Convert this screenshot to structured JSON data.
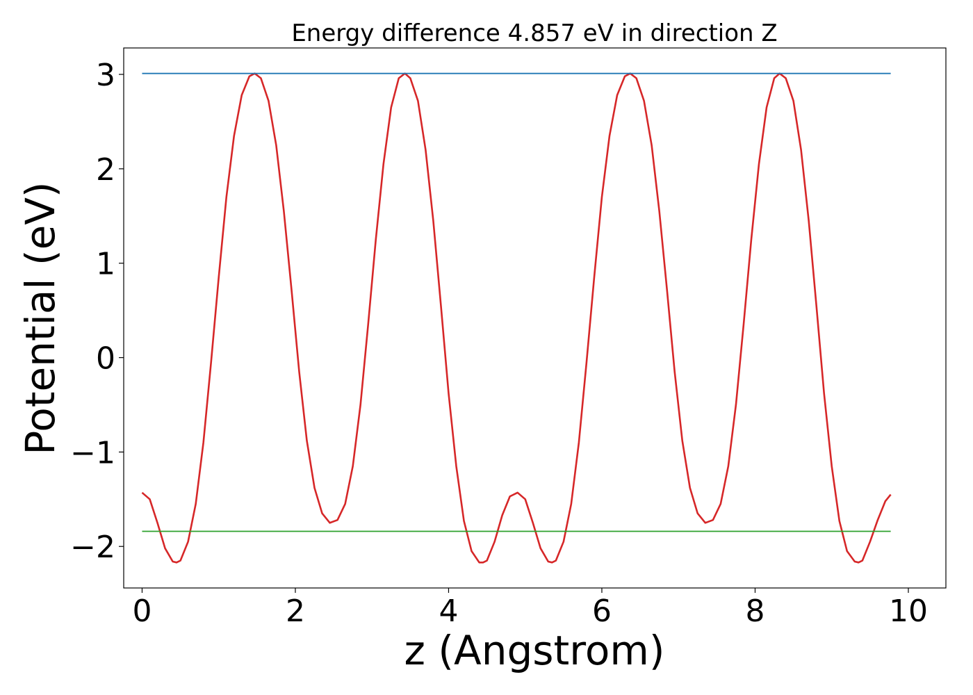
{
  "chart_data": {
    "type": "line",
    "title": "Energy difference 4.857 eV in direction Z",
    "xlabel": "z (Angstrom)",
    "ylabel": "Potential (eV)",
    "xlim": [
      -0.24,
      10.49
    ],
    "ylim": [
      -2.44,
      3.28
    ],
    "grid": false,
    "xticks": [
      0,
      2,
      4,
      6,
      8,
      10
    ],
    "xtick_labels": [
      "0",
      "2",
      "4",
      "6",
      "8",
      "10"
    ],
    "yticks": [
      -2,
      -1,
      0,
      1,
      2,
      3
    ],
    "ytick_labels": [
      "−2",
      "−1",
      "0",
      "1",
      "2",
      "3"
    ],
    "series": [
      {
        "color": "#d62728",
        "x": [
          0.0,
          0.1,
          0.2,
          0.3,
          0.4,
          0.45,
          0.5,
          0.6,
          0.7,
          0.8,
          0.9,
          1.0,
          1.1,
          1.2,
          1.3,
          1.4,
          1.47,
          1.55,
          1.65,
          1.75,
          1.85,
          1.95,
          2.05,
          2.15,
          2.25,
          2.35,
          2.45,
          2.55,
          2.65,
          2.75,
          2.85,
          2.95,
          3.05,
          3.15,
          3.25,
          3.35,
          3.43,
          3.5,
          3.6,
          3.7,
          3.8,
          3.9,
          4.0,
          4.1,
          4.2,
          4.3,
          4.4,
          4.45,
          4.5,
          4.6,
          4.7,
          4.8,
          4.9,
          5.0,
          5.1,
          5.2,
          5.3,
          5.35,
          5.4,
          5.5,
          5.6,
          5.7,
          5.8,
          5.9,
          6.0,
          6.1,
          6.2,
          6.3,
          6.37,
          6.45,
          6.55,
          6.65,
          6.75,
          6.85,
          6.95,
          7.05,
          7.15,
          7.25,
          7.35,
          7.45,
          7.55,
          7.65,
          7.75,
          7.85,
          7.95,
          8.05,
          8.15,
          8.25,
          8.32,
          8.4,
          8.5,
          8.6,
          8.7,
          8.8,
          8.9,
          9.0,
          9.1,
          9.2,
          9.3,
          9.35,
          9.4,
          9.5,
          9.6,
          9.7,
          9.77
        ],
        "y": [
          -1.43,
          -1.5,
          -1.75,
          -2.02,
          -2.16,
          -2.17,
          -2.15,
          -1.95,
          -1.55,
          -0.9,
          -0.05,
          0.85,
          1.7,
          2.35,
          2.78,
          2.98,
          3.01,
          2.96,
          2.72,
          2.25,
          1.55,
          0.72,
          -0.15,
          -0.88,
          -1.38,
          -1.65,
          -1.75,
          -1.72,
          -1.55,
          -1.15,
          -0.5,
          0.35,
          1.25,
          2.05,
          2.65,
          2.96,
          3.01,
          2.96,
          2.72,
          2.2,
          1.45,
          0.55,
          -0.38,
          -1.15,
          -1.73,
          -2.05,
          -2.17,
          -2.17,
          -2.15,
          -1.95,
          -1.67,
          -1.47,
          -1.43,
          -1.5,
          -1.75,
          -2.02,
          -2.16,
          -2.17,
          -2.15,
          -1.95,
          -1.55,
          -0.9,
          -0.05,
          0.85,
          1.7,
          2.35,
          2.78,
          2.98,
          3.01,
          2.96,
          2.72,
          2.25,
          1.55,
          0.72,
          -0.15,
          -0.88,
          -1.38,
          -1.65,
          -1.75,
          -1.72,
          -1.55,
          -1.15,
          -0.5,
          0.35,
          1.25,
          2.05,
          2.65,
          2.96,
          3.01,
          2.96,
          2.72,
          2.2,
          1.45,
          0.55,
          -0.38,
          -1.15,
          -1.73,
          -2.05,
          -2.16,
          -2.17,
          -2.15,
          -1.95,
          -1.72,
          -1.52,
          -1.45
        ]
      },
      {
        "color": "#1f77b4",
        "x": [
          0.0,
          9.77
        ],
        "y": [
          3.01,
          3.01
        ]
      },
      {
        "color": "#2ca02c",
        "x": [
          0.0,
          9.77
        ],
        "y": [
          -1.84,
          -1.84
        ]
      }
    ]
  }
}
